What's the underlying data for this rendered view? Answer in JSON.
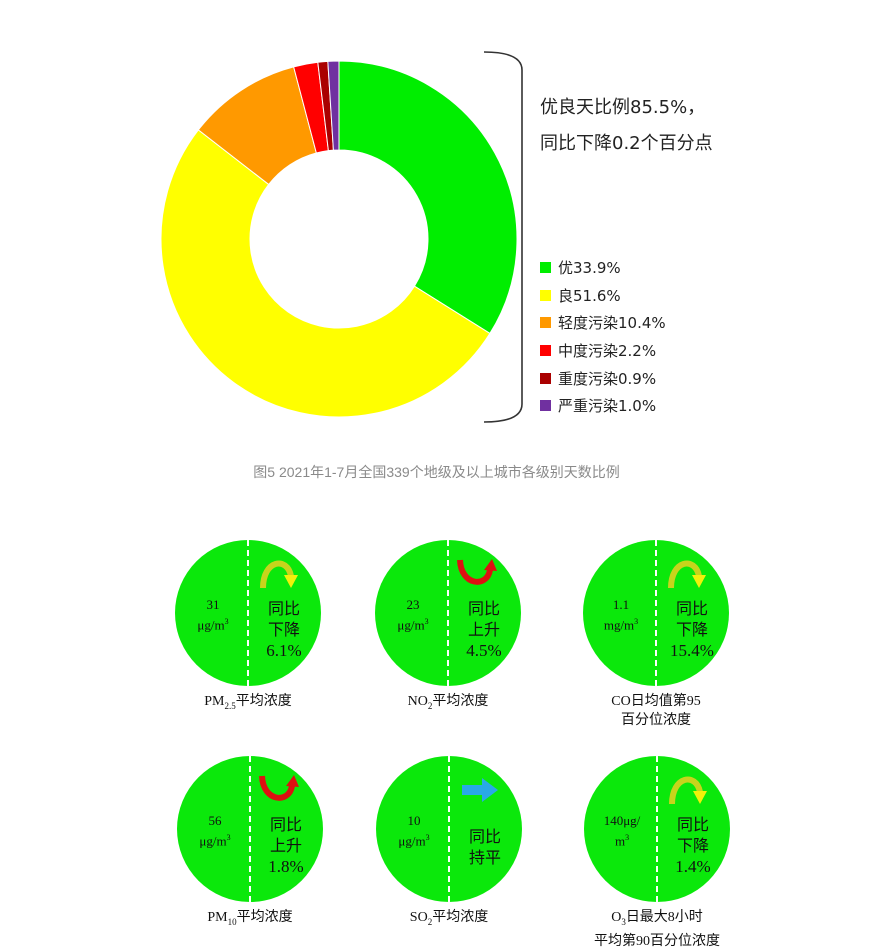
{
  "chart_data": {
    "type": "pie",
    "title": "",
    "categories": [
      "优",
      "良",
      "轻度污染",
      "中度污染",
      "重度污染",
      "严重污染"
    ],
    "values": [
      33.9,
      51.6,
      10.4,
      2.2,
      0.9,
      1.0
    ],
    "colors": [
      "#00ee00",
      "#ffff00",
      "#ff9900",
      "#ff0000",
      "#aa0000",
      "#7030a0"
    ],
    "hole": true,
    "legend_labels": [
      "优33.9%",
      "良51.6%",
      "轻度污染10.4%",
      "中度污染2.2%",
      "重度污染0.9%",
      "严重污染1.0%"
    ],
    "legend_position": "right"
  },
  "summary": {
    "line1": "优良天比例85.5%，",
    "line2": "同比下降0.2个百分点"
  },
  "caption": "图5 2021年1-7月全国339个地级及以上城市各级别天数比例",
  "metrics": [
    {
      "value": "31",
      "unit": "μg/m",
      "unit_sup": "3",
      "dir": "down",
      "change_line1": "同比",
      "change_line2": "下降",
      "change_pct": "6.1%",
      "label_main": "PM",
      "label_sub": "2.5",
      "label_rest": "平均浓度",
      "label_line2": ""
    },
    {
      "value": "23",
      "unit": "μg/m",
      "unit_sup": "3",
      "dir": "up",
      "change_line1": "同比",
      "change_line2": "上升",
      "change_pct": "4.5%",
      "label_main": "NO",
      "label_sub": "2",
      "label_rest": "平均浓度",
      "label_line2": ""
    },
    {
      "value": "1.1",
      "unit": "mg/m",
      "unit_sup": "3",
      "dir": "down",
      "change_line1": "同比",
      "change_line2": "下降",
      "change_pct": "15.4%",
      "label_main": "CO",
      "label_sub": "",
      "label_rest": "日均值第95",
      "label_line2": "百分位浓度"
    },
    {
      "value": "56",
      "unit": "μg/m",
      "unit_sup": "3",
      "dir": "up",
      "change_line1": "同比",
      "change_line2": "上升",
      "change_pct": "1.8%",
      "label_main": "PM",
      "label_sub": "10",
      "label_rest": "平均浓度",
      "label_line2": ""
    },
    {
      "value": "10",
      "unit": "μg/m",
      "unit_sup": "3",
      "dir": "flat",
      "change_line1": "同比",
      "change_line2": "持平",
      "change_pct": "",
      "label_main": "SO",
      "label_sub": "2",
      "label_rest": "平均浓度",
      "label_line2": ""
    },
    {
      "value": "140μg/",
      "unit": "m",
      "unit_sup": "3",
      "dir": "down",
      "change_line1": "同比",
      "change_line2": "下降",
      "change_pct": "1.4%",
      "label_main": "O",
      "label_sub": "3",
      "label_rest": "日最大8小时",
      "label_line2": "平均第90百分位浓度"
    }
  ]
}
